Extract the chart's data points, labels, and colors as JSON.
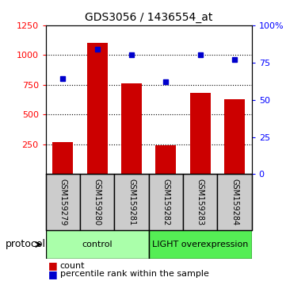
{
  "title": "GDS3056 / 1436554_at",
  "samples": [
    "GSM159279",
    "GSM159280",
    "GSM159281",
    "GSM159282",
    "GSM159283",
    "GSM159284"
  ],
  "counts": [
    270,
    1100,
    760,
    240,
    680,
    630
  ],
  "percentile_ranks": [
    64,
    84,
    80,
    62,
    80,
    77
  ],
  "bar_color": "#cc0000",
  "dot_color": "#0000cc",
  "ylim_left": [
    0,
    1250
  ],
  "ylim_right": [
    0,
    100
  ],
  "yticks_left": [
    250,
    500,
    750,
    1000,
    1250
  ],
  "yticks_right": [
    0,
    25,
    50,
    75,
    100
  ],
  "grid_vals": [
    250,
    500,
    750,
    1000
  ],
  "bg_color": "#ffffff",
  "title_fontsize": 10,
  "control_color": "#aaffaa",
  "light_color": "#55ee55",
  "label_bg_color": "#cccccc"
}
